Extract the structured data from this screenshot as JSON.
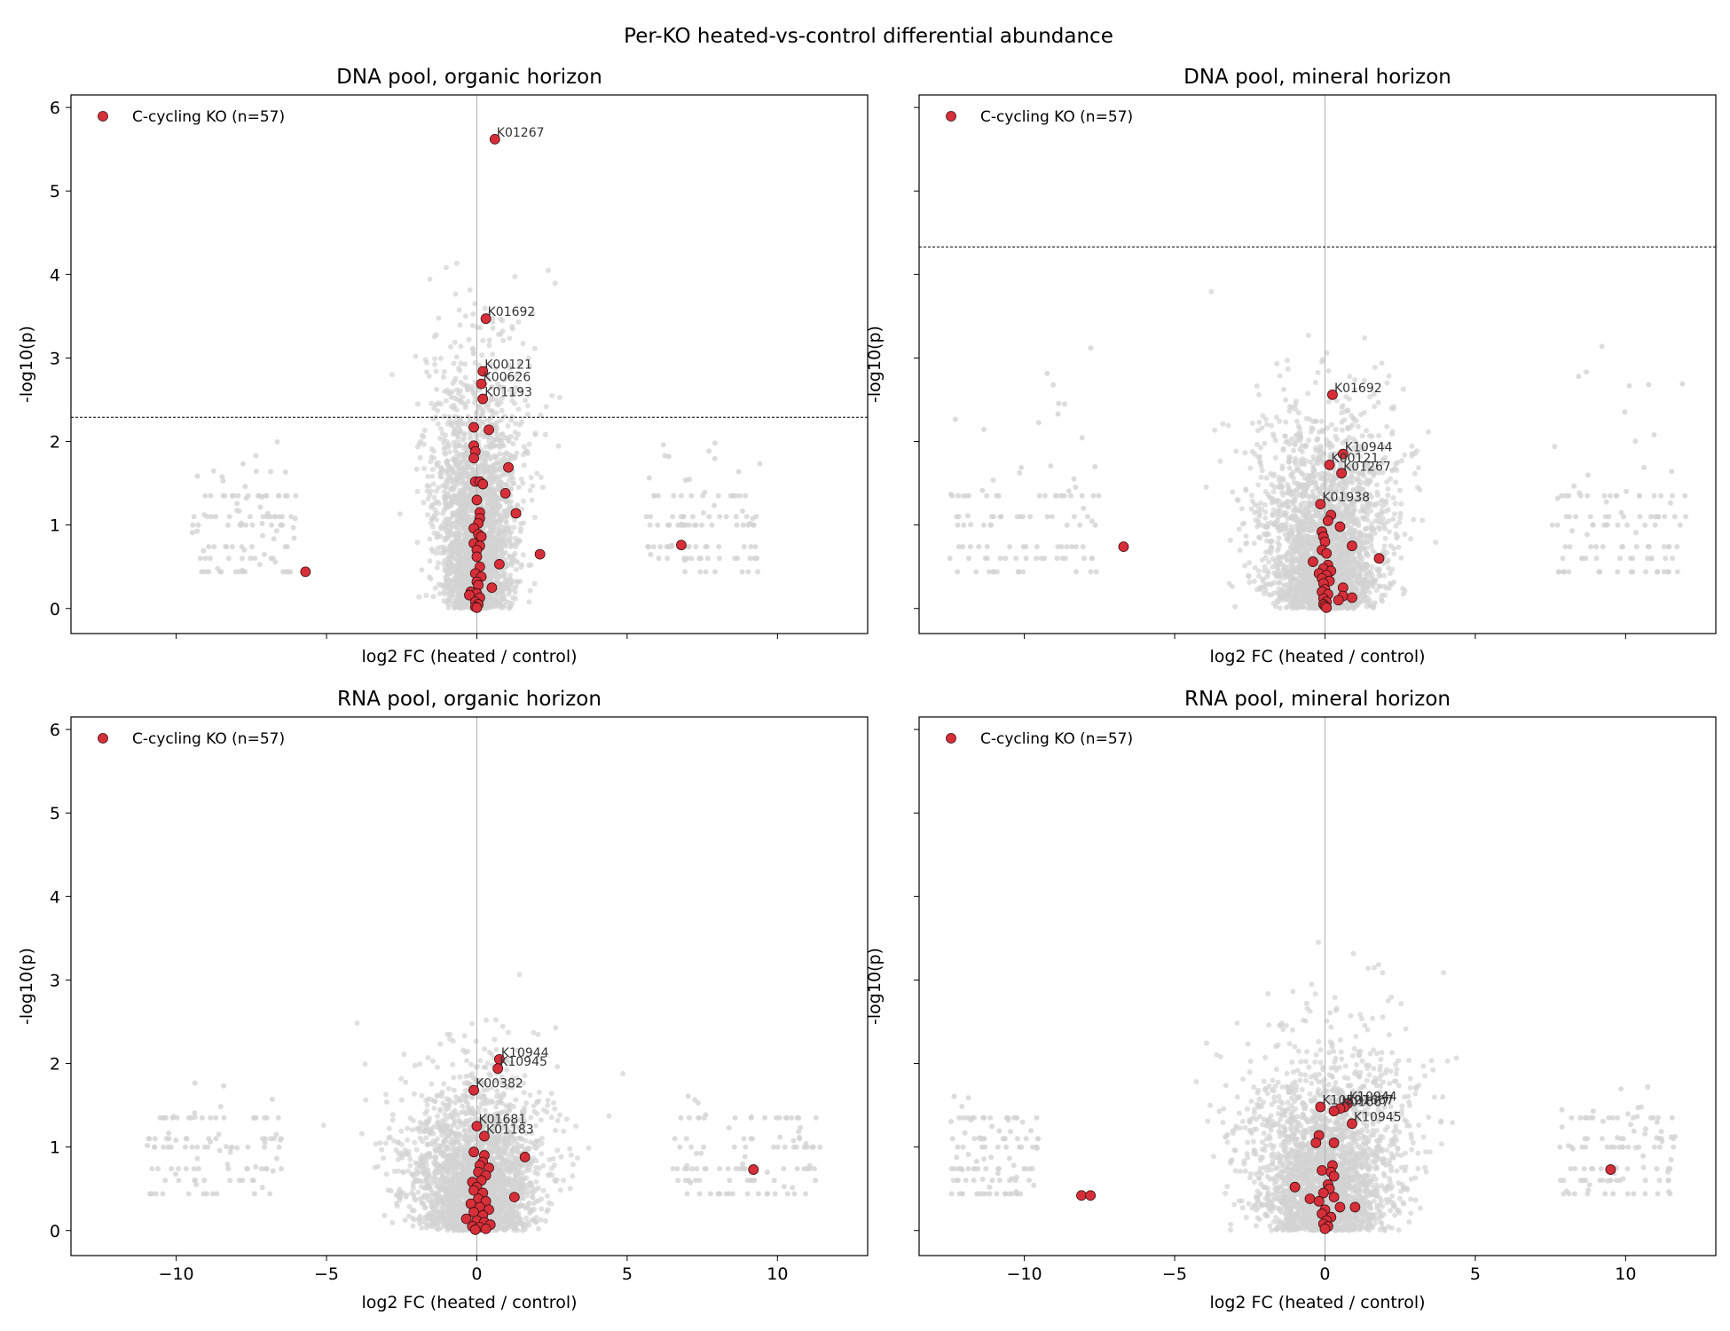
{
  "figure_title": "Per-KO heated-vs-control differential abundance",
  "colors": {
    "background_points": "#d3d3d3",
    "highlight_points": "#d62f3a",
    "highlight_edge": "#3a1010",
    "zero_line": "#b0b0b0",
    "threshold_line": "#000000"
  },
  "chart_data": [
    {
      "type": "scatter",
      "title": "DNA pool, organic horizon",
      "xlabel": "log2 FC (heated / control)",
      "ylabel": "-log10(p)",
      "xlim": [
        -13.5,
        13.0
      ],
      "ylim": [
        -0.3,
        6.15
      ],
      "xticks": [
        -10,
        -5,
        0,
        5,
        10
      ],
      "yticks": [
        0,
        1,
        2,
        3,
        4,
        5,
        6
      ],
      "show_x_tick_labels": false,
      "show_y_tick_labels": true,
      "threshold": 2.29,
      "grid": false,
      "legend": {
        "label": "C-cycling KO (n=57)",
        "placement": "top-left"
      },
      "background_cloud": {
        "center_halfwidth": 2.5,
        "center_peak": 5.9,
        "left_cluster_x": [
          -9.5,
          -6.0
        ],
        "right_cluster_x": [
          5.5,
          9.5
        ],
        "side_y_max": 2.0
      },
      "highlight_points": [
        {
          "x": 0.6,
          "y": 5.62,
          "label": "K01267"
        },
        {
          "x": 0.3,
          "y": 3.47,
          "label": "K01692"
        },
        {
          "x": 0.2,
          "y": 2.84,
          "label": "K00121"
        },
        {
          "x": 0.15,
          "y": 2.69,
          "label": "K00626"
        },
        {
          "x": 0.2,
          "y": 2.51,
          "label": "K01193"
        },
        {
          "x": -0.1,
          "y": 2.17
        },
        {
          "x": 0.4,
          "y": 2.14
        },
        {
          "x": -0.1,
          "y": 1.95
        },
        {
          "x": -0.05,
          "y": 1.88
        },
        {
          "x": -0.1,
          "y": 1.8
        },
        {
          "x": 1.05,
          "y": 1.69
        },
        {
          "x": -0.05,
          "y": 1.52
        },
        {
          "x": 0.1,
          "y": 1.52
        },
        {
          "x": 0.2,
          "y": 1.49
        },
        {
          "x": 0.95,
          "y": 1.38
        },
        {
          "x": 0.0,
          "y": 1.3
        },
        {
          "x": 0.1,
          "y": 1.15
        },
        {
          "x": 1.3,
          "y": 1.14
        },
        {
          "x": 0.1,
          "y": 1.08
        },
        {
          "x": 0.05,
          "y": 1.02
        },
        {
          "x": -0.1,
          "y": 0.96
        },
        {
          "x": 0.05,
          "y": 0.89
        },
        {
          "x": 0.15,
          "y": 0.86
        },
        {
          "x": -0.1,
          "y": 0.78
        },
        {
          "x": 0.1,
          "y": 0.75
        },
        {
          "x": 0.0,
          "y": 0.7
        },
        {
          "x": 6.8,
          "y": 0.76
        },
        {
          "x": 2.1,
          "y": 0.65
        },
        {
          "x": 0.0,
          "y": 0.62
        },
        {
          "x": 0.75,
          "y": 0.53
        },
        {
          "x": 0.1,
          "y": 0.5
        },
        {
          "x": -0.05,
          "y": 0.42
        },
        {
          "x": -5.7,
          "y": 0.44
        },
        {
          "x": 0.15,
          "y": 0.38
        },
        {
          "x": 0.0,
          "y": 0.32
        },
        {
          "x": 0.05,
          "y": 0.28
        },
        {
          "x": 0.5,
          "y": 0.25
        },
        {
          "x": -0.2,
          "y": 0.2
        },
        {
          "x": 0.0,
          "y": 0.18
        },
        {
          "x": -0.25,
          "y": 0.16
        },
        {
          "x": 0.1,
          "y": 0.13
        },
        {
          "x": -0.05,
          "y": 0.08
        },
        {
          "x": 0.05,
          "y": 0.05
        },
        {
          "x": -0.05,
          "y": 0.02
        },
        {
          "x": 0.0,
          "y": 0.01
        }
      ]
    },
    {
      "type": "scatter",
      "title": "DNA pool, mineral horizon",
      "xlabel": "log2 FC (heated / control)",
      "ylabel": "-log10(p)",
      "xlim": [
        -13.5,
        13.0
      ],
      "ylim": [
        -0.3,
        6.15
      ],
      "xticks": [
        -10,
        -5,
        0,
        5,
        10
      ],
      "yticks": [
        0,
        1,
        2,
        3,
        4,
        5,
        6
      ],
      "show_x_tick_labels": false,
      "show_y_tick_labels": false,
      "threshold": 4.33,
      "grid": false,
      "legend": {
        "label": "C-cycling KO (n=57)",
        "placement": "top-left"
      },
      "background_cloud": {
        "center_halfwidth": 3.8,
        "center_peak": 4.6,
        "left_cluster_x": [
          -12.5,
          -7.5
        ],
        "right_cluster_x": [
          7.5,
          12.0
        ],
        "side_y_max": 3.0
      },
      "highlight_points": [
        {
          "x": 0.25,
          "y": 2.56,
          "label": "K01692"
        },
        {
          "x": 0.6,
          "y": 1.85,
          "label": "K10944"
        },
        {
          "x": 0.15,
          "y": 1.72,
          "label": "K00121"
        },
        {
          "x": 0.55,
          "y": 1.62,
          "label": "K01267"
        },
        {
          "x": -0.15,
          "y": 1.25,
          "label": "K01938"
        },
        {
          "x": 0.2,
          "y": 1.12
        },
        {
          "x": 0.1,
          "y": 1.05
        },
        {
          "x": 0.5,
          "y": 0.98
        },
        {
          "x": -0.1,
          "y": 0.92
        },
        {
          "x": -0.05,
          "y": 0.86
        },
        {
          "x": 0.0,
          "y": 0.8
        },
        {
          "x": 0.9,
          "y": 0.75
        },
        {
          "x": -6.7,
          "y": 0.74
        },
        {
          "x": -0.1,
          "y": 0.7
        },
        {
          "x": 0.05,
          "y": 0.66
        },
        {
          "x": 1.8,
          "y": 0.6
        },
        {
          "x": -0.4,
          "y": 0.56
        },
        {
          "x": 0.1,
          "y": 0.52
        },
        {
          "x": -0.05,
          "y": 0.48
        },
        {
          "x": 0.2,
          "y": 0.45
        },
        {
          "x": -0.2,
          "y": 0.42
        },
        {
          "x": 0.05,
          "y": 0.4
        },
        {
          "x": -0.1,
          "y": 0.36
        },
        {
          "x": 0.15,
          "y": 0.33
        },
        {
          "x": -0.05,
          "y": 0.3
        },
        {
          "x": 0.6,
          "y": 0.25
        },
        {
          "x": 0.0,
          "y": 0.23
        },
        {
          "x": -0.1,
          "y": 0.2
        },
        {
          "x": 0.1,
          "y": 0.17
        },
        {
          "x": 0.6,
          "y": 0.15
        },
        {
          "x": 0.9,
          "y": 0.13
        },
        {
          "x": -0.05,
          "y": 0.12
        },
        {
          "x": 0.45,
          "y": 0.1
        },
        {
          "x": 0.05,
          "y": 0.08
        },
        {
          "x": -0.05,
          "y": 0.05
        },
        {
          "x": 0.0,
          "y": 0.03
        },
        {
          "x": 0.05,
          "y": 0.01
        }
      ]
    },
    {
      "type": "scatter",
      "title": "RNA pool, organic horizon",
      "xlabel": "log2 FC (heated / control)",
      "ylabel": "-log10(p)",
      "xlim": [
        -13.5,
        13.0
      ],
      "ylim": [
        -0.3,
        6.15
      ],
      "xticks": [
        -10,
        -5,
        0,
        5,
        10
      ],
      "xtick_labels": [
        "−10",
        "−5",
        "0",
        "5",
        "10"
      ],
      "yticks": [
        0,
        1,
        2,
        3,
        4,
        5,
        6
      ],
      "show_x_tick_labels": true,
      "show_y_tick_labels": true,
      "threshold": null,
      "grid": false,
      "legend": {
        "label": "C-cycling KO (n=57)",
        "placement": "top-left"
      },
      "background_cloud": {
        "center_halfwidth": 4.0,
        "center_peak": 3.75,
        "left_cluster_x": [
          -11.0,
          -6.5
        ],
        "right_cluster_x": [
          6.5,
          11.5
        ],
        "side_y_max": 1.7
      },
      "highlight_points": [
        {
          "x": 0.75,
          "y": 2.05,
          "label": "K10944"
        },
        {
          "x": 0.7,
          "y": 1.94,
          "label": "K10945"
        },
        {
          "x": -0.1,
          "y": 1.68,
          "label": "K00382"
        },
        {
          "x": 0.0,
          "y": 1.25,
          "label": "K01681"
        },
        {
          "x": 0.25,
          "y": 1.13,
          "label": "K01183"
        },
        {
          "x": -0.1,
          "y": 0.94
        },
        {
          "x": 0.25,
          "y": 0.9
        },
        {
          "x": 1.6,
          "y": 0.88
        },
        {
          "x": 0.2,
          "y": 0.82
        },
        {
          "x": 0.1,
          "y": 0.78
        },
        {
          "x": 0.4,
          "y": 0.75
        },
        {
          "x": 9.2,
          "y": 0.73
        },
        {
          "x": 0.05,
          "y": 0.7
        },
        {
          "x": 0.3,
          "y": 0.66
        },
        {
          "x": 0.15,
          "y": 0.6
        },
        {
          "x": -0.15,
          "y": 0.58
        },
        {
          "x": 0.0,
          "y": 0.52
        },
        {
          "x": -0.1,
          "y": 0.48
        },
        {
          "x": 0.2,
          "y": 0.45
        },
        {
          "x": 1.25,
          "y": 0.4
        },
        {
          "x": 0.05,
          "y": 0.38
        },
        {
          "x": 0.3,
          "y": 0.35
        },
        {
          "x": -0.2,
          "y": 0.32
        },
        {
          "x": 0.1,
          "y": 0.28
        },
        {
          "x": 0.4,
          "y": 0.25
        },
        {
          "x": -0.1,
          "y": 0.22
        },
        {
          "x": 0.2,
          "y": 0.18
        },
        {
          "x": -0.35,
          "y": 0.14
        },
        {
          "x": 0.0,
          "y": 0.12
        },
        {
          "x": 0.25,
          "y": 0.1
        },
        {
          "x": 0.45,
          "y": 0.07
        },
        {
          "x": -0.15,
          "y": 0.05
        },
        {
          "x": 0.1,
          "y": 0.04
        },
        {
          "x": 0.3,
          "y": 0.02
        },
        {
          "x": -0.05,
          "y": 0.01
        }
      ]
    },
    {
      "type": "scatter",
      "title": "RNA pool, mineral horizon",
      "xlabel": "log2 FC (heated / control)",
      "ylabel": "-log10(p)",
      "xlim": [
        -13.5,
        13.0
      ],
      "ylim": [
        -0.3,
        6.15
      ],
      "xticks": [
        -10,
        -5,
        0,
        5,
        10
      ],
      "xtick_labels": [
        "−10",
        "−5",
        "0",
        "5",
        "10"
      ],
      "yticks": [
        0,
        1,
        2,
        3,
        4,
        5,
        6
      ],
      "show_x_tick_labels": true,
      "show_y_tick_labels": false,
      "threshold": null,
      "grid": false,
      "legend": {
        "label": "C-cycling KO (n=57)",
        "placement": "top-left"
      },
      "background_cloud": {
        "center_halfwidth": 4.5,
        "center_peak": 4.5,
        "left_cluster_x": [
          -12.5,
          -9.5
        ],
        "right_cluster_x": [
          7.8,
          11.8
        ],
        "side_y_max": 1.6
      },
      "highlight_points": [
        {
          "x": 0.75,
          "y": 1.52,
          "label": "K10944"
        },
        {
          "x": 0.65,
          "y": 1.48,
          "label": "K01667"
        },
        {
          "x": 0.5,
          "y": 1.46,
          "label": "K01667"
        },
        {
          "x": -0.15,
          "y": 1.48,
          "label": "K10527"
        },
        {
          "x": 0.3,
          "y": 1.43
        },
        {
          "x": 0.9,
          "y": 1.28,
          "label": "K10945"
        },
        {
          "x": -0.2,
          "y": 1.14
        },
        {
          "x": -0.3,
          "y": 1.05
        },
        {
          "x": 0.3,
          "y": 1.05
        },
        {
          "x": 0.25,
          "y": 0.78
        },
        {
          "x": -0.1,
          "y": 0.72
        },
        {
          "x": 0.2,
          "y": 0.7
        },
        {
          "x": 9.5,
          "y": 0.73
        },
        {
          "x": 0.3,
          "y": 0.65
        },
        {
          "x": 0.1,
          "y": 0.55
        },
        {
          "x": -1.0,
          "y": 0.52
        },
        {
          "x": 0.15,
          "y": 0.5
        },
        {
          "x": -0.05,
          "y": 0.45
        },
        {
          "x": -8.1,
          "y": 0.42
        },
        {
          "x": -7.8,
          "y": 0.42
        },
        {
          "x": 0.3,
          "y": 0.4
        },
        {
          "x": -0.5,
          "y": 0.38
        },
        {
          "x": -0.2,
          "y": 0.35
        },
        {
          "x": 0.5,
          "y": 0.28
        },
        {
          "x": 1.0,
          "y": 0.28
        },
        {
          "x": 0.0,
          "y": 0.25
        },
        {
          "x": -0.1,
          "y": 0.2
        },
        {
          "x": 0.2,
          "y": 0.16
        },
        {
          "x": 0.05,
          "y": 0.12
        },
        {
          "x": -0.05,
          "y": 0.08
        },
        {
          "x": 0.1,
          "y": 0.05
        },
        {
          "x": 0.0,
          "y": 0.02
        }
      ]
    }
  ]
}
